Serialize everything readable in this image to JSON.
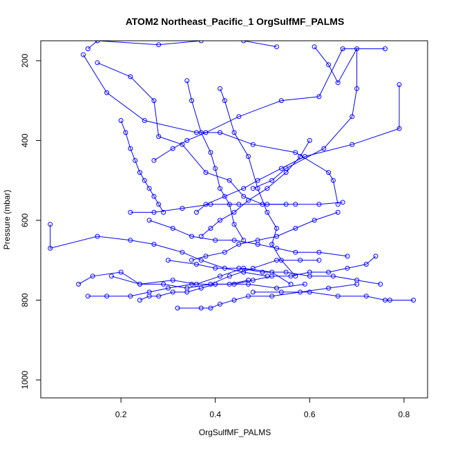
{
  "chart_data": {
    "type": "line",
    "title": "ATOM2 Northeast_Pacific_1 OrgSulfMF_PALMS",
    "xlabel": "OrgSulfMF_PALMS",
    "ylabel": "Pressure (mbar)",
    "xlim": [
      0.03,
      0.85
    ],
    "ylim": [
      1045,
      150
    ],
    "y_reversed": true,
    "x_ticks": [
      0.2,
      0.4,
      0.6,
      0.8
    ],
    "x_tick_labels": [
      "0.2",
      "0.4",
      "0.6",
      "0.8"
    ],
    "y_ticks": [
      200,
      400,
      600,
      800,
      1000
    ],
    "y_tick_labels": [
      "200",
      "400",
      "600",
      "800",
      "1000"
    ],
    "grid": false,
    "legend": "none",
    "marker": "open-circle",
    "color": "#0000ff",
    "series": [
      {
        "x": [
          0.13,
          0.15,
          0.28,
          0.37,
          0.46,
          0.53
        ],
        "y": [
          170,
          150,
          160,
          150,
          150,
          165
        ]
      },
      {
        "x": [
          0.12,
          0.17,
          0.25,
          0.36,
          0.41,
          0.48,
          0.57,
          0.64,
          0.65,
          0.66
        ],
        "y": [
          185,
          280,
          350,
          380,
          380,
          410,
          430,
          480,
          500,
          560
        ]
      },
      {
        "x": [
          0.15,
          0.22,
          0.27,
          0.28,
          0.33,
          0.38,
          0.43,
          0.46,
          0.5,
          0.55
        ],
        "y": [
          205,
          240,
          300,
          390,
          410,
          480,
          500,
          540,
          560,
          560
        ]
      },
      {
        "x": [
          0.61,
          0.64,
          0.66,
          0.7,
          0.7,
          0.69,
          0.63,
          0.55,
          0.52,
          0.48
        ],
        "y": [
          165,
          210,
          255,
          170,
          270,
          340,
          420,
          470,
          500,
          520
        ]
      },
      {
        "x": [
          0.79,
          0.79,
          0.69,
          0.59,
          0.54,
          0.49,
          0.46,
          0.42,
          0.38,
          0.36
        ],
        "y": [
          260,
          370,
          410,
          440,
          470,
          500,
          520,
          540,
          560,
          580
        ]
      },
      {
        "x": [
          0.76,
          0.67,
          0.62,
          0.54,
          0.45,
          0.38,
          0.34,
          0.31,
          0.27
        ],
        "y": [
          170,
          170,
          290,
          300,
          340,
          380,
          400,
          420,
          450
        ]
      },
      {
        "x": [
          0.2,
          0.21,
          0.22,
          0.23,
          0.24,
          0.25,
          0.26,
          0.27,
          0.28,
          0.29
        ],
        "y": [
          350,
          380,
          420,
          450,
          480,
          500,
          520,
          540,
          560,
          580
        ]
      },
      {
        "x": [
          0.05,
          0.05,
          0.15,
          0.22,
          0.27,
          0.33,
          0.37,
          0.42,
          0.46,
          0.51
        ],
        "y": [
          610,
          670,
          640,
          650,
          660,
          680,
          700,
          720,
          730,
          740
        ]
      },
      {
        "x": [
          0.11,
          0.14,
          0.2,
          0.24,
          0.31,
          0.36,
          0.41,
          0.46,
          0.52,
          0.56
        ],
        "y": [
          760,
          740,
          730,
          760,
          750,
          760,
          740,
          720,
          730,
          760
        ]
      },
      {
        "x": [
          0.13,
          0.17,
          0.22,
          0.26,
          0.3,
          0.35,
          0.4,
          0.47,
          0.53,
          0.59
        ],
        "y": [
          790,
          790,
          790,
          780,
          770,
          760,
          760,
          760,
          770,
          760
        ]
      },
      {
        "x": [
          0.32,
          0.37,
          0.39,
          0.41,
          0.44,
          0.47,
          0.52,
          0.58,
          0.64,
          0.7
        ],
        "y": [
          820,
          820,
          820,
          810,
          800,
          790,
          790,
          780,
          770,
          760
        ]
      },
      {
        "x": [
          0.48,
          0.54,
          0.6,
          0.66,
          0.72,
          0.76,
          0.77,
          0.82
        ],
        "y": [
          780,
          780,
          780,
          790,
          790,
          800,
          800,
          800
        ]
      },
      {
        "x": [
          0.18,
          0.24,
          0.29,
          0.34,
          0.39,
          0.43,
          0.48,
          0.53,
          0.58,
          0.62
        ],
        "y": [
          740,
          760,
          760,
          770,
          760,
          740,
          720,
          700,
          700,
          700
        ]
      },
      {
        "x": [
          0.3,
          0.36,
          0.4,
          0.45,
          0.5,
          0.55,
          0.6,
          0.65,
          0.7,
          0.75
        ],
        "y": [
          700,
          710,
          720,
          720,
          730,
          730,
          740,
          740,
          750,
          760
        ]
      },
      {
        "x": [
          0.26,
          0.31,
          0.35,
          0.4,
          0.44,
          0.49,
          0.53,
          0.57,
          0.62,
          0.68
        ],
        "y": [
          600,
          620,
          640,
          650,
          650,
          660,
          670,
          680,
          680,
          690
        ]
      },
      {
        "x": [
          0.22,
          0.27,
          0.33,
          0.39,
          0.45,
          0.51,
          0.57,
          0.62,
          0.67
        ],
        "y": [
          580,
          580,
          570,
          560,
          560,
          560,
          560,
          560,
          555
        ]
      },
      {
        "x": [
          0.41,
          0.42,
          0.44,
          0.47,
          0.49,
          0.51,
          0.53,
          0.52,
          0.54,
          0.57
        ],
        "y": [
          270,
          300,
          380,
          440,
          520,
          580,
          620,
          660,
          700,
          740
        ]
      },
      {
        "x": [
          0.34,
          0.35,
          0.37,
          0.39,
          0.4,
          0.41,
          0.43,
          0.44,
          0.46
        ],
        "y": [
          250,
          300,
          380,
          430,
          470,
          520,
          560,
          610,
          650
        ]
      },
      {
        "x": [
          0.6,
          0.58,
          0.55,
          0.51,
          0.47,
          0.44,
          0.41,
          0.39,
          0.37
        ],
        "y": [
          400,
          440,
          480,
          520,
          550,
          580,
          600,
          620,
          640
        ]
      },
      {
        "x": [
          0.66,
          0.61,
          0.57,
          0.53,
          0.49,
          0.45,
          0.42,
          0.38,
          0.35
        ],
        "y": [
          580,
          600,
          620,
          640,
          650,
          660,
          680,
          690,
          700
        ]
      },
      {
        "x": [
          0.74,
          0.72,
          0.68,
          0.64,
          0.6,
          0.56,
          0.52,
          0.48,
          0.44
        ],
        "y": [
          690,
          710,
          720,
          730,
          730,
          740,
          740,
          750,
          760
        ]
      },
      {
        "x": [
          0.24,
          0.26,
          0.28,
          0.31,
          0.34,
          0.37,
          0.4,
          0.43,
          0.47
        ],
        "y": [
          800,
          790,
          790,
          780,
          780,
          770,
          760,
          760,
          750
        ]
      }
    ]
  }
}
